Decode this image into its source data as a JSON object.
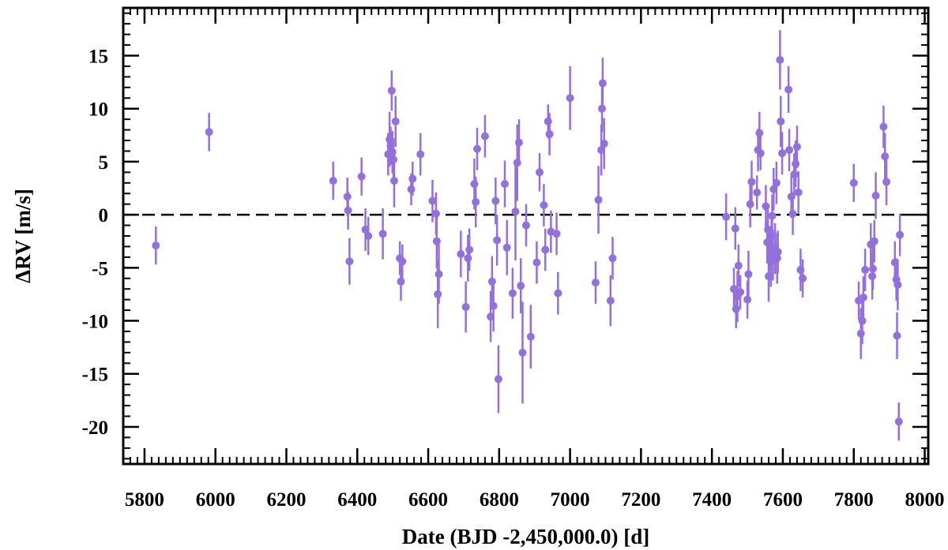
{
  "chart_data": {
    "type": "scatter",
    "xlabel": "Date (BJD -2,450,000.0) [d]",
    "ylabel": "ΔRV [m/s]",
    "xlim": [
      5740,
      8010
    ],
    "ylim": [
      -23.5,
      19.5
    ],
    "x_ticks": [
      5800,
      6000,
      6200,
      6400,
      6600,
      6800,
      7000,
      7200,
      7400,
      7600,
      7800,
      8000
    ],
    "y_ticks": [
      15,
      10,
      5,
      0,
      -5,
      -10,
      -15,
      -20
    ],
    "x_minor_step": 20,
    "y_minor_step": 1,
    "reference_line": 0,
    "marker_color": "#9370db",
    "grid": false,
    "legend": "none",
    "points": [
      [
        5832,
        -2.9,
        1.8
      ],
      [
        5982,
        7.8,
        1.8
      ],
      [
        6332,
        3.2,
        1.8
      ],
      [
        6372,
        1.7,
        1.8
      ],
      [
        6374,
        0.4,
        1.8
      ],
      [
        6378,
        -4.4,
        2.2
      ],
      [
        6412,
        3.6,
        1.8
      ],
      [
        6423,
        -1.4,
        2.0
      ],
      [
        6431,
        -2.0,
        1.8
      ],
      [
        6472,
        -1.8,
        2.4
      ],
      [
        6487,
        5.7,
        2.0
      ],
      [
        6491,
        7.1,
        2.6
      ],
      [
        6494,
        6.5,
        1.8
      ],
      [
        6497,
        11.7,
        1.9
      ],
      [
        6499,
        5.9,
        2.0
      ],
      [
        6502,
        5.2,
        2.0
      ],
      [
        6504,
        3.2,
        2.5
      ],
      [
        6508,
        8.8,
        2.4
      ],
      [
        6520,
        -4.1,
        1.6
      ],
      [
        6523,
        -6.3,
        1.8
      ],
      [
        6527,
        -4.4,
        1.6
      ],
      [
        6552,
        2.4,
        1.5
      ],
      [
        6556,
        3.4,
        1.6
      ],
      [
        6578,
        5.7,
        2.0
      ],
      [
        6612,
        1.3,
        2.0
      ],
      [
        6622,
        0.1,
        2.0
      ],
      [
        6624,
        -2.5,
        2.6
      ],
      [
        6627,
        -7.5,
        3.2
      ],
      [
        6630,
        -5.6,
        2.8
      ],
      [
        6692,
        -3.7,
        2.2
      ],
      [
        6706,
        -8.7,
        2.4
      ],
      [
        6712,
        -4.1,
        2.2
      ],
      [
        6716,
        -3.3,
        2.0
      ],
      [
        6730,
        2.9,
        2.4
      ],
      [
        6734,
        1.2,
        2.4
      ],
      [
        6738,
        6.2,
        2.0
      ],
      [
        6760,
        7.4,
        2.0
      ],
      [
        6776,
        -9.6,
        2.4
      ],
      [
        6780,
        -6.3,
        2.4
      ],
      [
        6784,
        -8.6,
        2.4
      ],
      [
        6790,
        1.3,
        2.2
      ],
      [
        6794,
        -2.4,
        2.4
      ],
      [
        6798,
        -15.5,
        3.2
      ],
      [
        6816,
        2.9,
        2.2
      ],
      [
        6822,
        -3.1,
        2.6
      ],
      [
        6838,
        -7.4,
        2.4
      ],
      [
        6846,
        0.3,
        4.6
      ],
      [
        6851,
        4.9,
        3.6
      ],
      [
        6856,
        6.8,
        2.2
      ],
      [
        6861,
        -6.7,
        2.6
      ],
      [
        6866,
        -13.0,
        4.8
      ],
      [
        6876,
        -1.0,
        2.0
      ],
      [
        6889,
        -11.5,
        3.0
      ],
      [
        6906,
        -4.5,
        2.0
      ],
      [
        6914,
        4.0,
        1.8
      ],
      [
        6926,
        0.9,
        2.0
      ],
      [
        6930,
        -3.3,
        2.0
      ],
      [
        6938,
        8.8,
        1.6
      ],
      [
        6942,
        7.6,
        2.0
      ],
      [
        6946,
        -1.6,
        2.0
      ],
      [
        6962,
        -1.8,
        2.0
      ],
      [
        6966,
        -7.4,
        2.0
      ],
      [
        7000,
        11.0,
        3.0
      ],
      [
        7072,
        -6.4,
        2.0
      ],
      [
        7080,
        1.4,
        3.2
      ],
      [
        7088,
        6.1,
        2.4
      ],
      [
        7090,
        10.0,
        2.2
      ],
      [
        7092,
        12.4,
        2.4
      ],
      [
        7096,
        6.7,
        2.4
      ],
      [
        7114,
        -8.1,
        2.4
      ],
      [
        7120,
        -4.1,
        2.0
      ],
      [
        7440,
        -0.2,
        2.2
      ],
      [
        7462,
        -7.0,
        2.0
      ],
      [
        7466,
        -1.3,
        2.0
      ],
      [
        7468,
        -8.9,
        1.8
      ],
      [
        7472,
        -7.7,
        2.4
      ],
      [
        7475,
        -4.8,
        2.0
      ],
      [
        7480,
        -7.3,
        1.6
      ],
      [
        7500,
        -8.0,
        1.8
      ],
      [
        7503,
        -5.6,
        2.2
      ],
      [
        7508,
        1.0,
        2.2
      ],
      [
        7512,
        3.1,
        2.0
      ],
      [
        7527,
        2.1,
        1.6
      ],
      [
        7530,
        6.1,
        2.0
      ],
      [
        7534,
        7.7,
        2.0
      ],
      [
        7537,
        5.8,
        1.6
      ],
      [
        7552,
        0.8,
        2.0
      ],
      [
        7556,
        -2.6,
        2.0
      ],
      [
        7558,
        -1.4,
        2.0
      ],
      [
        7560,
        -5.8,
        2.4
      ],
      [
        7564,
        -3.2,
        2.0
      ],
      [
        7566,
        -4.4,
        2.4
      ],
      [
        7568,
        -2.0,
        2.2
      ],
      [
        7570,
        -0.1,
        2.0
      ],
      [
        7572,
        -3.8,
        2.4
      ],
      [
        7574,
        2.4,
        2.0
      ],
      [
        7578,
        -3.2,
        2.4
      ],
      [
        7582,
        3.0,
        2.0
      ],
      [
        7584,
        -4.1,
        2.4
      ],
      [
        7586,
        -3.5,
        2.0
      ],
      [
        7592,
        14.6,
        2.8
      ],
      [
        7594,
        8.8,
        2.4
      ],
      [
        7598,
        5.8,
        2.0
      ],
      [
        7616,
        11.8,
        2.2
      ],
      [
        7618,
        6.1,
        2.0
      ],
      [
        7624,
        1.7,
        2.0
      ],
      [
        7628,
        0.1,
        2.0
      ],
      [
        7632,
        3.8,
        2.0
      ],
      [
        7636,
        4.8,
        2.2
      ],
      [
        7640,
        6.4,
        2.0
      ],
      [
        7644,
        2.1,
        2.0
      ],
      [
        7650,
        -5.2,
        2.0
      ],
      [
        7656,
        -6.0,
        1.8
      ],
      [
        7800,
        3.0,
        1.8
      ],
      [
        7814,
        -8.1,
        1.8
      ],
      [
        7820,
        -11.2,
        2.4
      ],
      [
        7824,
        -10.0,
        2.2
      ],
      [
        7827,
        -7.8,
        2.0
      ],
      [
        7832,
        -5.2,
        2.0
      ],
      [
        7848,
        -2.8,
        2.0
      ],
      [
        7852,
        -5.8,
        2.2
      ],
      [
        7854,
        -5.1,
        2.0
      ],
      [
        7858,
        -2.5,
        2.0
      ],
      [
        7862,
        1.8,
        2.2
      ],
      [
        7884,
        8.3,
        2.0
      ],
      [
        7888,
        5.5,
        2.2
      ],
      [
        7892,
        3.1,
        2.2
      ],
      [
        7916,
        -4.5,
        2.0
      ],
      [
        7920,
        -6.1,
        2.0
      ],
      [
        7922,
        -11.4,
        2.2
      ],
      [
        7924,
        -6.6,
        2.4
      ],
      [
        7927,
        -19.5,
        1.8
      ],
      [
        7930,
        -1.9,
        2.0
      ]
    ]
  }
}
